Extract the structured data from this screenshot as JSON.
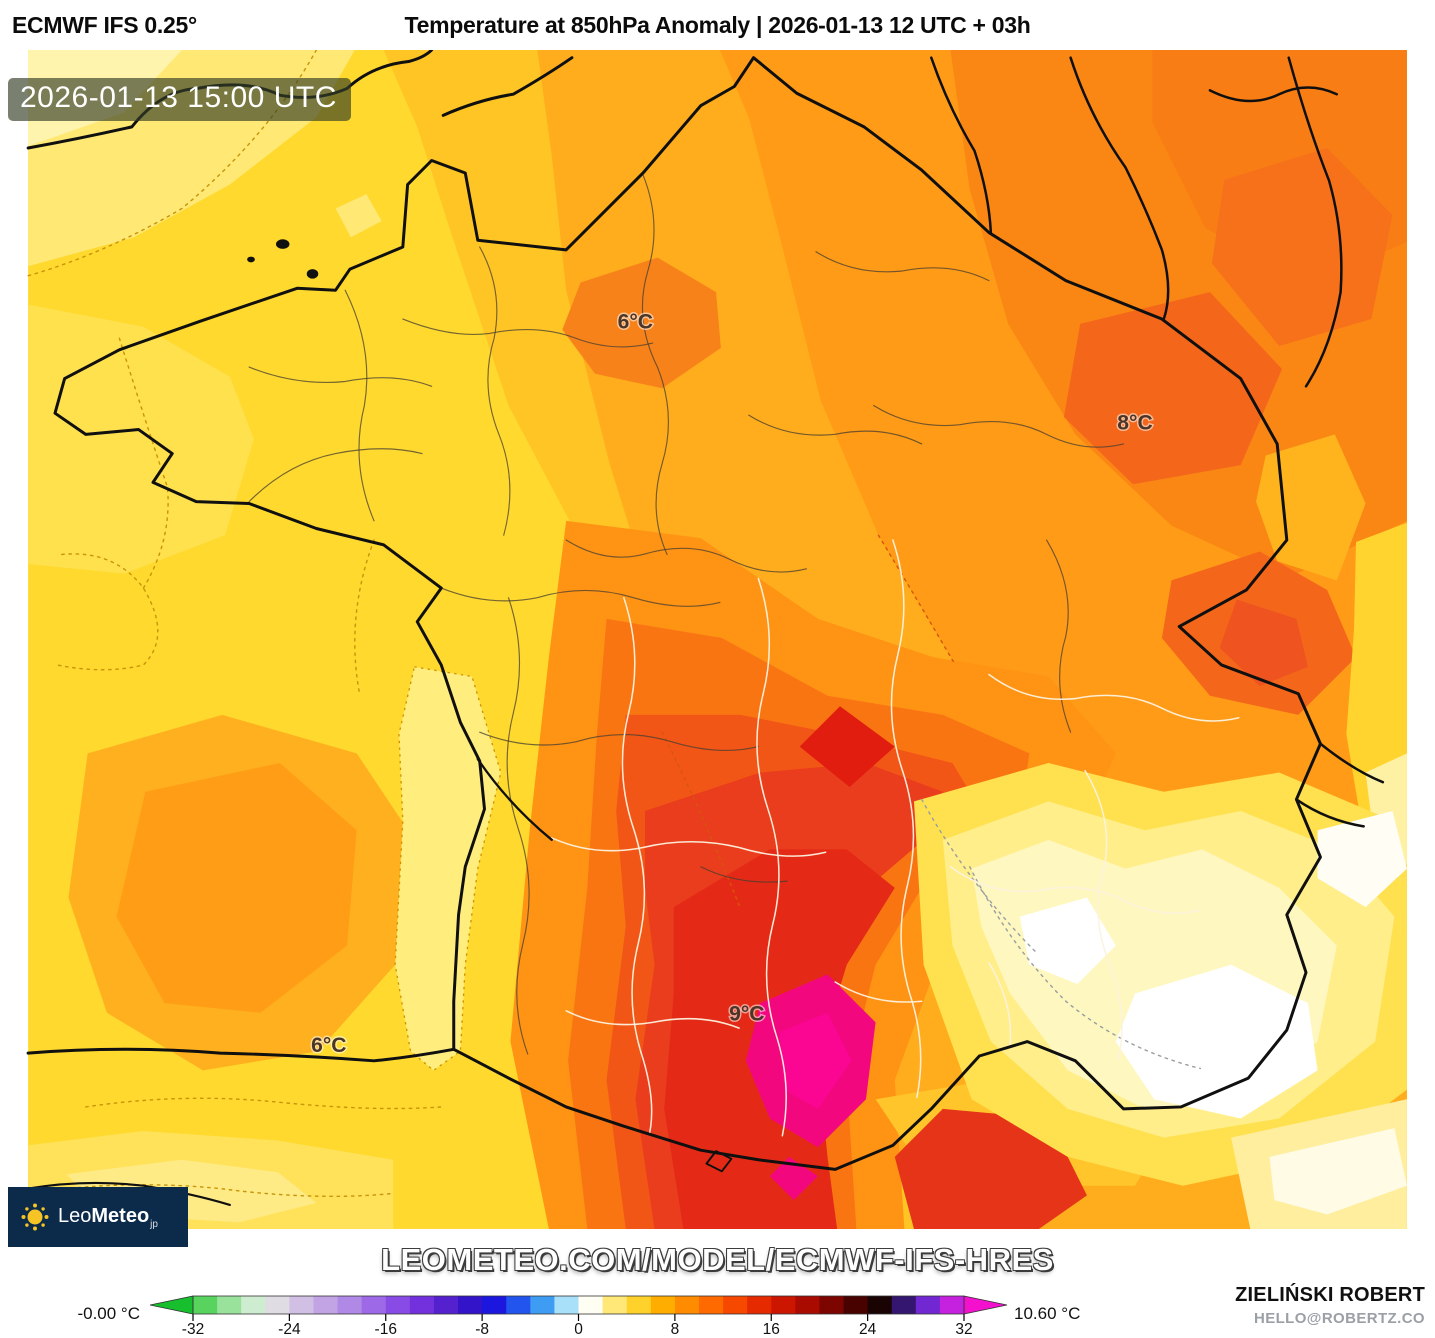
{
  "header": {
    "model": "ECMWF IFS 0.25°",
    "title": "Temperature at 850hPa Anomaly | 2026-01-13 12 UTC + 03h"
  },
  "map": {
    "timestamp": "2026-01-13 15:00 UTC",
    "watermark": "LEOMETEO.COM/MODEL/ECMWF-IFS-HRES",
    "labels": [
      {
        "text": "6°C",
        "region": "paris-area"
      },
      {
        "text": "8°C",
        "region": "northeast"
      },
      {
        "text": "9°C",
        "region": "south-central-hotspot"
      },
      {
        "text": "6°C",
        "region": "southwest"
      }
    ],
    "logo": {
      "brand_light": "Leo",
      "brand_bold": "Meteo",
      "brand_suffix": "jp"
    },
    "colors": {
      "logo_bg": "#0c2b4b",
      "sun": "#f6c425",
      "hotspot_magenta": "#f2077e",
      "base_yellow": "#ffd92e"
    }
  },
  "colorbar": {
    "min_label": "-0.00 °C",
    "max_label": "10.60 °C",
    "unit": "°C",
    "range": [
      -32,
      32
    ],
    "ticks": [
      -32,
      -24,
      -16,
      -8,
      0,
      8,
      16,
      24,
      32
    ],
    "arrow_left_color": "#17BF2E",
    "arrow_right_color": "#F411CE",
    "segment_colors": [
      "#58D45E",
      "#98E29B",
      "#CEEDD0",
      "#E0DCE4",
      "#D2C0E4",
      "#C2A4E5",
      "#B088E6",
      "#9D69E7",
      "#894BE5",
      "#7331DD",
      "#5520CE",
      "#3414C9",
      "#1C17DE",
      "#2254EE",
      "#3E9DF3",
      "#A8DFF9",
      "#FFFEF2",
      "#FFE878",
      "#FFD22B",
      "#FFAE00",
      "#FF8C00",
      "#FF6A00",
      "#F74800",
      "#E52A00",
      "#CC1600",
      "#A90B00",
      "#7D0500",
      "#480200",
      "#190403",
      "#341670",
      "#7128D2",
      "#C522E0"
    ]
  },
  "credits": {
    "author": "ZIELIŃSKI ROBERT",
    "contact": "HELLO@ROBERTZ.CO"
  }
}
